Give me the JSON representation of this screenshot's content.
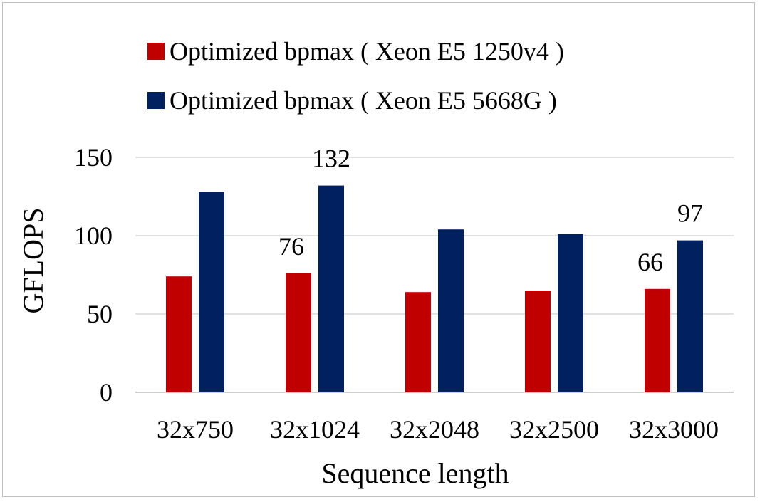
{
  "chart_data": {
    "type": "bar",
    "categories": [
      "32x750",
      "32x1024",
      "32x2048",
      "32x2500",
      "32x3000"
    ],
    "series": [
      {
        "name": "Optimized bpmax ( Xeon E5 1250v4 )",
        "color": "#c00000",
        "values": [
          74,
          76,
          64,
          65,
          66
        ]
      },
      {
        "name": "Optimized bpmax ( Xeon E5 5668G )",
        "color": "#002060",
        "values": [
          128,
          132,
          104,
          101,
          97
        ]
      }
    ],
    "data_labels": [
      {
        "series": 0,
        "category": 1,
        "text": "76"
      },
      {
        "series": 1,
        "category": 1,
        "text": "132"
      },
      {
        "series": 0,
        "category": 4,
        "text": "66"
      },
      {
        "series": 1,
        "category": 4,
        "text": "97"
      }
    ],
    "xlabel": "Sequence length",
    "ylabel": "GFLOPS",
    "ylim": [
      0,
      150
    ],
    "yticks": [
      0,
      50,
      100,
      150
    ],
    "grid": true,
    "gridline_color": "#d9d9d9",
    "legend_position": "top"
  }
}
